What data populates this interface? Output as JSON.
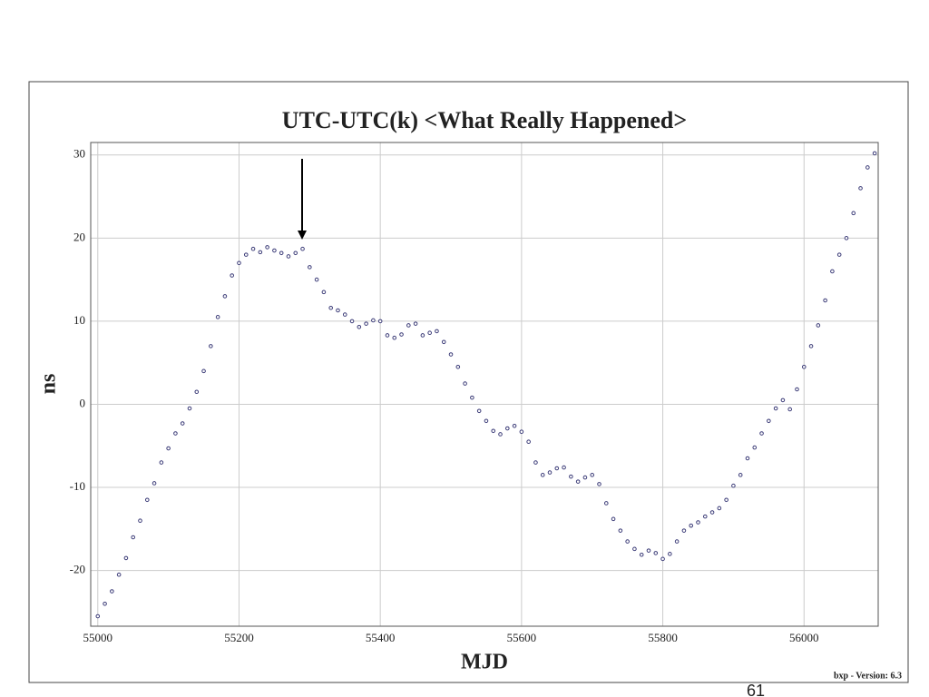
{
  "chart_data": {
    "type": "scatter",
    "title": "UTC-UTC(k)   <What Really Happened>",
    "x_label": "MJD",
    "y_label": "ns",
    "footer": "bxp - Version: 6.3",
    "page_number": "61",
    "color": "#3c3c78",
    "grid": true,
    "xlim": [
      54990,
      56105
    ],
    "ylim": [
      -26.7,
      31.5
    ],
    "xticks": [
      55000,
      55200,
      55400,
      55600,
      55800,
      56000
    ],
    "yticks": [
      -20,
      -10,
      0,
      10,
      20,
      30
    ],
    "x": [
      55000,
      55010,
      55020,
      55030,
      55040,
      55050,
      55060,
      55070,
      55080,
      55090,
      55100,
      55110,
      55120,
      55130,
      55140,
      55150,
      55160,
      55170,
      55180,
      55190,
      55200,
      55210,
      55220,
      55230,
      55240,
      55250,
      55260,
      55270,
      55280,
      55290,
      55300,
      55310,
      55320,
      55330,
      55340,
      55350,
      55360,
      55370,
      55380,
      55390,
      55400,
      55410,
      55420,
      55430,
      55440,
      55450,
      55460,
      55470,
      55480,
      55490,
      55500,
      55510,
      55520,
      55530,
      55540,
      55550,
      55560,
      55570,
      55580,
      55590,
      55600,
      55610,
      55620,
      55630,
      55640,
      55650,
      55660,
      55670,
      55680,
      55690,
      55700,
      55710,
      55720,
      55730,
      55740,
      55750,
      55760,
      55770,
      55780,
      55790,
      55800,
      55810,
      55820,
      55830,
      55840,
      55850,
      55860,
      55870,
      55880,
      55890,
      55900,
      55910,
      55920,
      55930,
      55940,
      55950,
      55960,
      55970,
      55980,
      55990,
      56000,
      56010,
      56020,
      56030,
      56040,
      56050,
      56060,
      56070,
      56080,
      56090,
      56100
    ],
    "values": [
      -25.5,
      -24,
      -22.5,
      -20.5,
      -18.5,
      -16,
      -14,
      -11.5,
      -9.5,
      -7,
      -5.3,
      -3.5,
      -2.3,
      -0.5,
      1.5,
      4,
      7,
      10.5,
      13,
      15.5,
      17,
      18,
      18.7,
      18.3,
      18.9,
      18.5,
      18.2,
      17.8,
      18.2,
      18.7,
      16.5,
      15,
      13.5,
      11.6,
      11.3,
      10.8,
      10,
      9.3,
      9.7,
      10.1,
      10,
      8.3,
      8,
      8.4,
      9.5,
      9.7,
      8.3,
      8.6,
      8.8,
      7.5,
      6,
      4.5,
      2.5,
      0.8,
      -0.8,
      -2,
      -3.2,
      -3.6,
      -2.9,
      -2.6,
      -3.3,
      -4.5,
      -7,
      -8.5,
      -8.2,
      -7.7,
      -7.6,
      -8.7,
      -9.3,
      -8.8,
      -8.5,
      -9.6,
      -11.9,
      -13.8,
      -15.2,
      -16.5,
      -17.4,
      -18.1,
      -17.6,
      -17.9,
      -18.6,
      -18,
      -16.5,
      -15.2,
      -14.6,
      -14.2,
      -13.5,
      -13,
      -12.5,
      -11.5,
      -9.8,
      -8.5,
      -6.5,
      -5.2,
      -3.5,
      -2,
      -0.5,
      0.5,
      -0.6,
      1.8,
      4.5,
      7,
      9.5,
      12.5,
      16,
      18,
      20,
      23,
      26,
      28.5,
      30.2
    ]
  }
}
